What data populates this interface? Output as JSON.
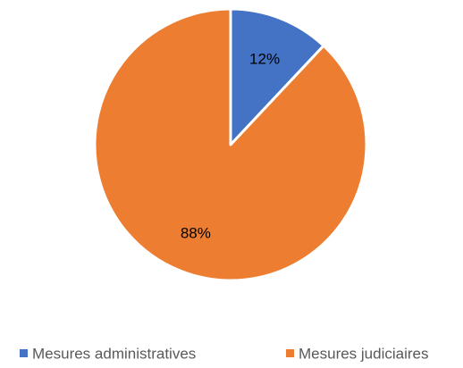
{
  "chart_data": {
    "type": "pie",
    "categories": [
      "Mesures administratives",
      "Mesures judiciaires"
    ],
    "values": [
      12,
      88
    ],
    "data_labels": [
      "12%",
      "88%"
    ],
    "colors": [
      "#4472C4",
      "#ED7D31"
    ],
    "title": "",
    "legend_position": "bottom",
    "start_angle": "12 o'clock",
    "direction": "clockwise"
  }
}
